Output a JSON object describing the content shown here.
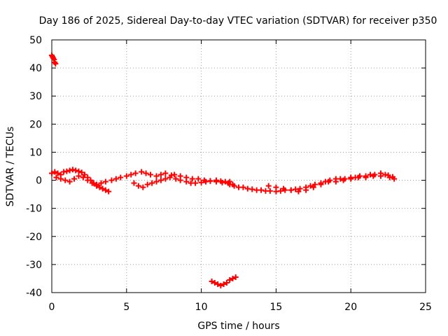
{
  "chart_data": {
    "type": "scatter",
    "title": "Day 186 of 2025, Sidereal Day-to-day VTEC variation (SDTVAR) for receiver p350",
    "xlabel": "GPS time / hours",
    "ylabel": "SDTVAR / TECUs",
    "xlim": [
      0,
      25
    ],
    "ylim": [
      -40,
      50
    ],
    "xticks": [
      0,
      5,
      10,
      15,
      20,
      25
    ],
    "yticks": [
      -40,
      -30,
      -20,
      -10,
      0,
      10,
      20,
      30,
      40,
      50
    ],
    "x_tick_labels": [
      "0",
      "5",
      "10",
      "15",
      "20",
      "25"
    ],
    "y_tick_labels": [
      "-40",
      "-30",
      "-20",
      "-10",
      "0",
      "10",
      "20",
      "30",
      "40",
      "50"
    ],
    "grid": true,
    "marker": "+",
    "color": "#ff0000",
    "series": [
      {
        "name": "p350",
        "x": [
          0.0,
          0.05,
          0.1,
          0.15,
          0.2,
          0.25,
          0.0,
          0.2,
          0.4,
          0.6,
          0.8,
          1.0,
          1.2,
          1.4,
          1.6,
          1.8,
          2.0,
          2.2,
          2.4,
          2.6,
          2.8,
          3.0,
          3.2,
          3.4,
          3.6,
          3.8,
          0.3,
          0.6,
          0.9,
          1.2,
          1.5,
          1.8,
          2.1,
          2.4,
          2.7,
          3.0,
          3.3,
          3.6,
          4.0,
          4.3,
          4.6,
          5.0,
          5.3,
          5.6,
          6.0,
          6.3,
          6.6,
          7.0,
          7.3,
          7.6,
          8.0,
          5.5,
          5.8,
          6.1,
          6.4,
          6.7,
          7.0,
          7.3,
          7.6,
          7.9,
          8.3,
          8.6,
          9.0,
          9.3,
          9.6,
          10.0,
          10.3,
          10.6,
          11.0,
          11.3,
          11.6,
          11.9,
          8.2,
          8.6,
          9.0,
          9.4,
          9.8,
          10.2,
          10.6,
          11.0,
          11.4,
          11.8,
          12.1,
          10.7,
          10.9,
          11.1,
          11.3,
          11.5,
          11.7,
          11.9,
          12.1,
          12.3,
          11.9,
          12.2,
          12.5,
          12.8,
          13.1,
          13.4,
          13.7,
          14.0,
          14.3,
          14.6,
          15.0,
          15.3,
          15.6,
          16.0,
          16.3,
          16.6,
          17.0,
          17.3,
          17.6,
          18.0,
          18.3,
          18.6,
          19.0,
          19.3,
          19.6,
          20.0,
          20.3,
          20.6,
          21.0,
          21.3,
          21.6,
          22.0,
          22.3,
          22.6,
          22.9,
          14.5,
          15.0,
          15.5,
          16.0,
          16.5,
          17.0,
          17.5,
          18.0,
          18.5,
          19.0,
          19.5,
          20.0,
          20.5,
          21.0,
          21.5,
          22.0,
          22.5,
          22.8
        ],
        "y": [
          44.5,
          44.0,
          43.5,
          43.0,
          42.0,
          41.5,
          2.5,
          3.0,
          2.5,
          2.0,
          3.0,
          3.2,
          3.5,
          3.8,
          3.5,
          3.2,
          2.8,
          2.0,
          1.0,
          0.0,
          -1.0,
          -2.0,
          -2.5,
          -3.0,
          -3.5,
          -4.0,
          1.0,
          0.5,
          0.0,
          -0.5,
          0.5,
          1.5,
          1.0,
          0.0,
          -1.0,
          -1.5,
          -1.0,
          -0.5,
          0.0,
          0.5,
          1.0,
          1.5,
          2.0,
          2.5,
          3.0,
          2.5,
          2.0,
          1.5,
          2.0,
          2.5,
          1.8,
          -1.0,
          -2.0,
          -2.5,
          -1.5,
          -1.0,
          -0.5,
          0.0,
          0.5,
          1.0,
          0.5,
          0.0,
          -0.5,
          -1.0,
          -1.0,
          -0.8,
          -0.5,
          -0.2,
          0.0,
          -0.3,
          -0.5,
          -0.5,
          2.0,
          1.5,
          1.0,
          0.5,
          0.5,
          0.0,
          -0.3,
          -0.5,
          -0.8,
          -1.0,
          -1.5,
          -36.0,
          -36.5,
          -37.0,
          -37.5,
          -37.0,
          -36.5,
          -35.5,
          -35.0,
          -34.5,
          -1.5,
          -2.0,
          -2.5,
          -2.5,
          -3.0,
          -3.2,
          -3.5,
          -3.5,
          -3.8,
          -3.8,
          -4.0,
          -3.8,
          -3.5,
          -3.5,
          -3.2,
          -3.0,
          -2.5,
          -2.0,
          -1.5,
          -1.0,
          -0.5,
          0.0,
          0.5,
          0.5,
          0.5,
          1.0,
          1.0,
          1.5,
          1.5,
          2.0,
          2.0,
          2.5,
          2.0,
          1.0,
          0.5,
          -2.0,
          -2.5,
          -3.0,
          -3.5,
          -4.0,
          -3.5,
          -2.5,
          -1.5,
          -0.5,
          -0.5,
          0.0,
          0.5,
          1.0,
          1.0,
          1.5,
          1.5,
          1.8,
          1.2
        ]
      }
    ]
  }
}
